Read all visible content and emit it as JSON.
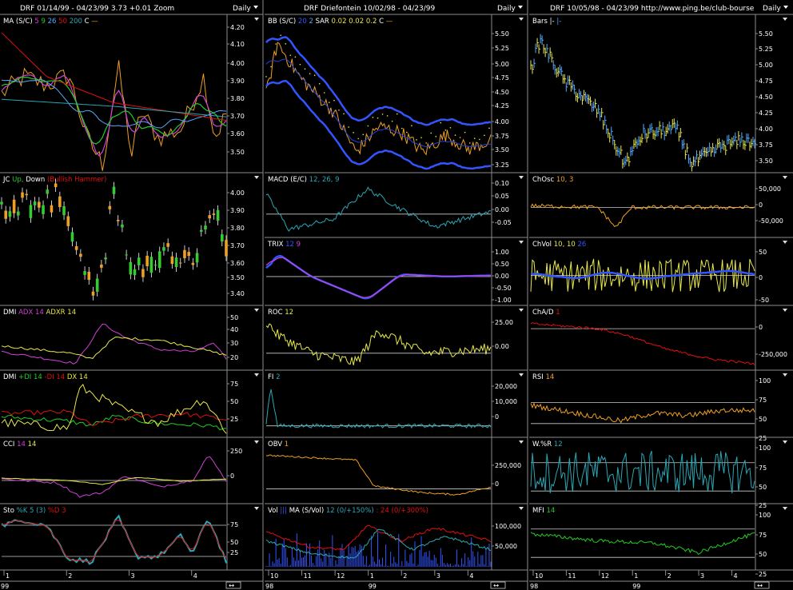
{
  "colors": {
    "bg": "#000000",
    "axis": "#8c8c8c",
    "text": "#ffffff",
    "green": "#22cc22",
    "cyan": "#2aa7b5",
    "yellow": "#e8e84a",
    "orange": "#f0a020",
    "red": "#e01010",
    "magenta": "#d040d8",
    "blue": "#3355ff",
    "ltblue": "#55aaff",
    "bull": "#33cc33",
    "bear": "#f0a020",
    "white": "#ffffff"
  },
  "headers": [
    {
      "title": "DRF  01/14/99 - 04/23/99   3.73  +0.01   Zoom",
      "period": "Daily"
    },
    {
      "title": "DRF  Driefontein  10/02/98 - 04/23/99",
      "period": "Daily"
    },
    {
      "title": "DRF  10/05/98 - 04/23/99     http://www.ping.be/club-bourse",
      "period": "Daily"
    }
  ],
  "columns": [
    {
      "xaxis": {
        "months": [
          "1",
          "2",
          "3",
          "4"
        ],
        "year": "99"
      },
      "panels": [
        {
          "legend": [
            [
              "MA (S/C)",
              "white"
            ],
            [
              "5",
              "magenta"
            ],
            [
              "9",
              "green"
            ],
            [
              "26",
              "ltblue"
            ],
            [
              "50",
              "red"
            ],
            [
              "200",
              "cyan"
            ],
            [
              "C",
              "white"
            ],
            [
              "—",
              "orange"
            ]
          ],
          "ticks": [
            "4.20",
            "4.10",
            "4.00",
            "3.90",
            "3.80",
            "3.70",
            "3.60",
            "3.50"
          ],
          "y": [
            3.42,
            4.24
          ]
        },
        {
          "legend": [
            [
              "JC",
              "white"
            ],
            [
              "Up,",
              "green"
            ],
            [
              "Down",
              "white"
            ],
            [
              "(Bullish Hammer)",
              "red"
            ]
          ],
          "ticks": [
            "4.00",
            "3.90",
            "3.80",
            "3.70",
            "3.60",
            "3.50",
            "3.40"
          ],
          "y": [
            3.35,
            4.1
          ]
        },
        {
          "legend": [
            [
              "DMI",
              "white"
            ],
            [
              "ADX 14",
              "magenta"
            ],
            [
              "ADXR 14",
              "yellow"
            ]
          ],
          "ticks": [
            "50",
            "40",
            "30",
            "20"
          ],
          "y": [
            15,
            58
          ]
        },
        {
          "legend": [
            [
              "DMI",
              "white"
            ],
            [
              "+DI 14",
              "green"
            ],
            [
              "-DI 14",
              "red"
            ],
            [
              "DX 14",
              "yellow"
            ]
          ],
          "ticks": [
            "75",
            "50",
            "25"
          ],
          "y": [
            0,
            90
          ]
        },
        {
          "legend": [
            [
              "CCI",
              "white"
            ],
            [
              "14",
              "magenta"
            ],
            [
              "14",
              "yellow"
            ]
          ],
          "ticks": [
            "250",
            "0"
          ],
          "y": [
            -250,
            400
          ]
        },
        {
          "legend": [
            [
              "Sto",
              "white"
            ],
            [
              "%K 5 (3)",
              "cyan"
            ],
            [
              "%D 3",
              "red"
            ]
          ],
          "ticks": [
            "75",
            "50",
            "25"
          ],
          "y": [
            0,
            100
          ]
        }
      ]
    },
    {
      "xaxis": {
        "months": [
          "10",
          "11",
          "12",
          "1",
          "2",
          "3",
          "4"
        ],
        "year": "98",
        "year2": "99"
      },
      "panels": [
        {
          "legend": [
            [
              "BB (S/C)",
              "white"
            ],
            [
              "20",
              "blue"
            ],
            [
              "2",
              "ltblue"
            ],
            [
              "SAR",
              "white"
            ],
            [
              "0.02",
              "yellow"
            ],
            [
              "0.02",
              "yellow"
            ],
            [
              "0.2",
              "yellow"
            ],
            [
              "C",
              "white"
            ],
            [
              "—",
              "orange"
            ]
          ],
          "ticks": [
            "5.50",
            "5.25",
            "5.00",
            "4.75",
            "4.50",
            "4.25",
            "4.00",
            "3.75",
            "3.50",
            "3.25"
          ],
          "y": [
            3.2,
            5.7
          ]
        },
        {
          "legend": [
            [
              "MACD (E/C)",
              "white"
            ],
            [
              "12, 26, 9",
              "cyan"
            ]
          ],
          "ticks": [
            "0.10",
            "0.05",
            "0.00",
            "-0.05"
          ],
          "y": [
            -0.08,
            0.12
          ]
        },
        {
          "legend": [
            [
              "TRIX",
              "white"
            ],
            [
              "12",
              "blue"
            ],
            [
              "9",
              "magenta"
            ]
          ],
          "ticks": [
            "1.00",
            "0.50",
            "0.00",
            "-0.50",
            "-1.00"
          ],
          "y": [
            -1.1,
            1.2
          ]
        },
        {
          "legend": [
            [
              "ROC",
              "white"
            ],
            [
              "12",
              "yellow"
            ]
          ],
          "ticks": [
            "25.00",
            "0.00"
          ],
          "y": [
            -15,
            40
          ]
        },
        {
          "legend": [
            [
              "FI",
              "white"
            ],
            [
              "2",
              "cyan"
            ]
          ],
          "ticks": [
            "20,000",
            "10,000",
            "0"
          ],
          "y": [
            -5000,
            27000
          ]
        },
        {
          "legend": [
            [
              "OBV",
              "white"
            ],
            [
              "1",
              "orange"
            ]
          ],
          "ticks": [
            "250,000",
            "0"
          ],
          "y": [
            -120000,
            420000
          ]
        },
        {
          "legend": [
            [
              "Vol",
              "white"
            ],
            [
              "|||",
              "blue"
            ],
            [
              "MA (S/Vol)",
              "white"
            ],
            [
              "12 (0/+150%)",
              "cyan"
            ],
            [
              ": 24 (0/+300%)",
              "red"
            ]
          ],
          "ticks": [
            "100,000",
            "50,000"
          ],
          "y": [
            0,
            120000
          ]
        }
      ]
    },
    {
      "xaxis": {
        "months": [
          "10",
          "11",
          "12",
          "1",
          "2",
          "3",
          "4"
        ],
        "year": "98",
        "year2": "99"
      },
      "panels": [
        {
          "legend": [
            [
              "Bars",
              "white"
            ],
            [
              "|-",
              "white"
            ],
            [
              "|-",
              "ltblue"
            ]
          ],
          "ticks": [
            "5.50",
            "5.25",
            "5.00",
            "4.75",
            "4.50",
            "4.25",
            "4.00",
            "3.75",
            "3.50"
          ],
          "y": [
            3.3,
            5.75
          ]
        },
        {
          "legend": [
            [
              "ChOsc",
              "white"
            ],
            [
              "10, 3",
              "orange"
            ]
          ],
          "ticks": [
            "50,000",
            "0",
            "-50,000"
          ],
          "y": [
            -80000,
            70000
          ]
        },
        {
          "legend": [
            [
              "ChVol",
              "white"
            ],
            [
              "10, 10",
              "yellow"
            ],
            [
              "26",
              "blue"
            ]
          ],
          "ticks": [
            "50",
            "0",
            "-50"
          ],
          "y": [
            -80,
            80
          ]
        },
        {
          "legend": [
            [
              "ChA/D",
              "white"
            ],
            [
              "1",
              "red"
            ]
          ],
          "ticks": [
            "0",
            "-250,000"
          ],
          "y": [
            -380000,
            120000
          ]
        },
        {
          "legend": [
            [
              "RSI",
              "white"
            ],
            [
              "14",
              "orange"
            ]
          ],
          "ticks": [
            "100",
            "75",
            "50",
            "25"
          ],
          "y": [
            10,
            110
          ]
        },
        {
          "legend": [
            [
              "W.%R",
              "white"
            ],
            [
              "12",
              "cyan"
            ]
          ],
          "ticks": [
            "100",
            "75",
            "50",
            "25"
          ],
          "y": [
            0,
            110
          ]
        },
        {
          "legend": [
            [
              "MFI",
              "white"
            ],
            [
              "14",
              "green"
            ]
          ],
          "ticks": [
            "100",
            "75",
            "50",
            "25"
          ],
          "y": [
            0,
            110
          ]
        }
      ]
    }
  ]
}
